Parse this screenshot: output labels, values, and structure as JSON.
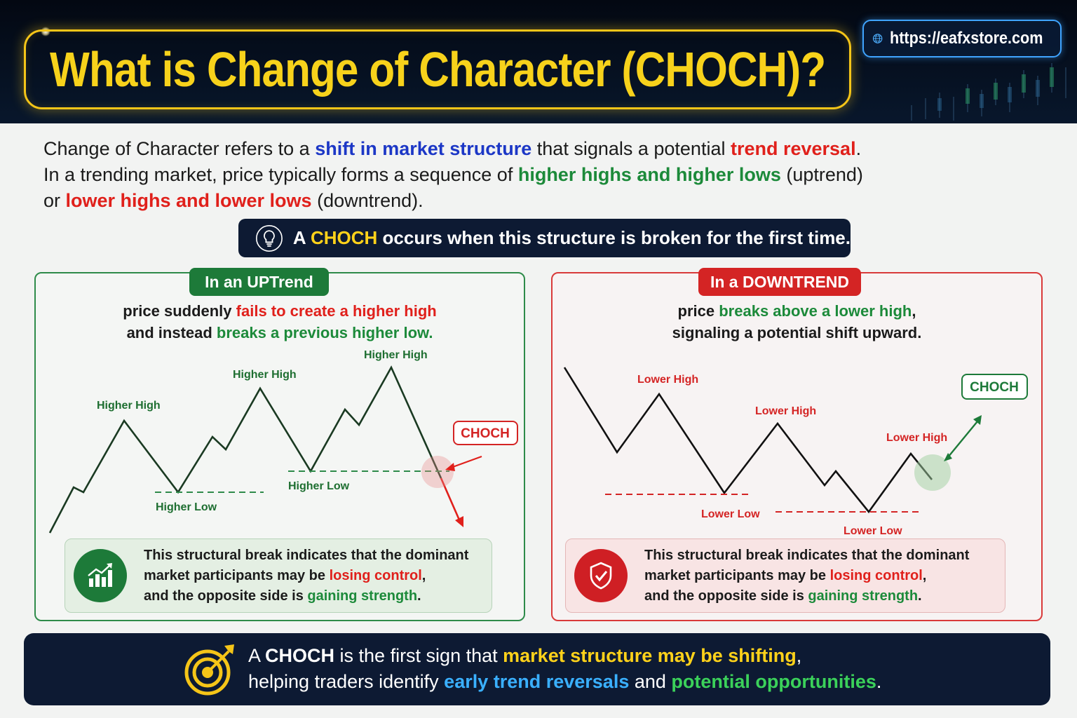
{
  "header": {
    "title": "What is Change of Character (CHOCH)?",
    "url": "https://eafxstore.com",
    "url_icon": "globe-icon",
    "title_color": "#f7d21b"
  },
  "intro": {
    "l1_a": "Change of Character refers to a ",
    "l1_b": "shift in market structure",
    "l1_c": " that signals a potential ",
    "l1_d": "trend reversal",
    "l1_e": ".",
    "l2_a": "In a trending market, price typically forms a sequence of ",
    "l2_b": "higher highs and higher lows",
    "l2_c": " (uptrend)",
    "l3_a": "or ",
    "l3_b": "lower highs and lower lows",
    "l3_c": " (downtrend)."
  },
  "callout": {
    "icon": "lightbulb-icon",
    "a": "A ",
    "b": "CHOCH",
    "c": " occurs when this structure is broken for the first time."
  },
  "uptrend": {
    "tag": "In an UPTrend",
    "d1_a": "price suddenly ",
    "d1_b": "fails to create a higher high",
    "d2_a": "and instead ",
    "d2_b": "breaks a previous higher low.",
    "labels": {
      "hh1": "Higher High",
      "hh2": "Higher High",
      "hh3": "Higher High",
      "hl1": "Higher Low",
      "hl2": "Higher Low",
      "choch": "CHOCH"
    },
    "note_icon": "bar-chart-growth-icon",
    "n1": "This structural break indicates that the dominant",
    "n2_a": "market participants may be ",
    "n2_b": "losing control",
    "n2_c": ",",
    "n3_a": "and the opposite side is ",
    "n3_b": "gaining strength",
    "n3_c": "."
  },
  "downtrend": {
    "tag": "In a DOWNTREND",
    "d1_a": "price ",
    "d1_b": "breaks above a lower high",
    "d1_c": ",",
    "d2": "signaling a potential shift upward.",
    "labels": {
      "lh1": "Lower High",
      "lh2": "Lower High",
      "lh3": "Lower High",
      "ll1": "Lower Low",
      "ll2": "Lower Low",
      "choch": "CHOCH"
    },
    "note_icon": "shield-check-icon",
    "n1": "This structural break indicates that the dominant",
    "n2_a": "market participants may be ",
    "n2_b": "losing control",
    "n2_c": ",",
    "n3_a": "and the opposite side is ",
    "n3_b": "gaining strength",
    "n3_c": "."
  },
  "footer": {
    "icon": "target-arrow-icon",
    "l1_a": "A ",
    "l1_b": "CHOCH",
    "l1_c": " is the first sign that ",
    "l1_d": "market structure may be shifting",
    "l1_e": ",",
    "l2_a": "helping traders identify ",
    "l2_b": "early trend reversals",
    "l2_c": " and ",
    "l2_d": "potential opportunities",
    "l2_e": "."
  },
  "colors": {
    "green": "#1c8a3a",
    "red": "#e0201b",
    "blue": "#1c37c6",
    "navy": "#0d1a33",
    "yellow": "#ffd21a"
  }
}
